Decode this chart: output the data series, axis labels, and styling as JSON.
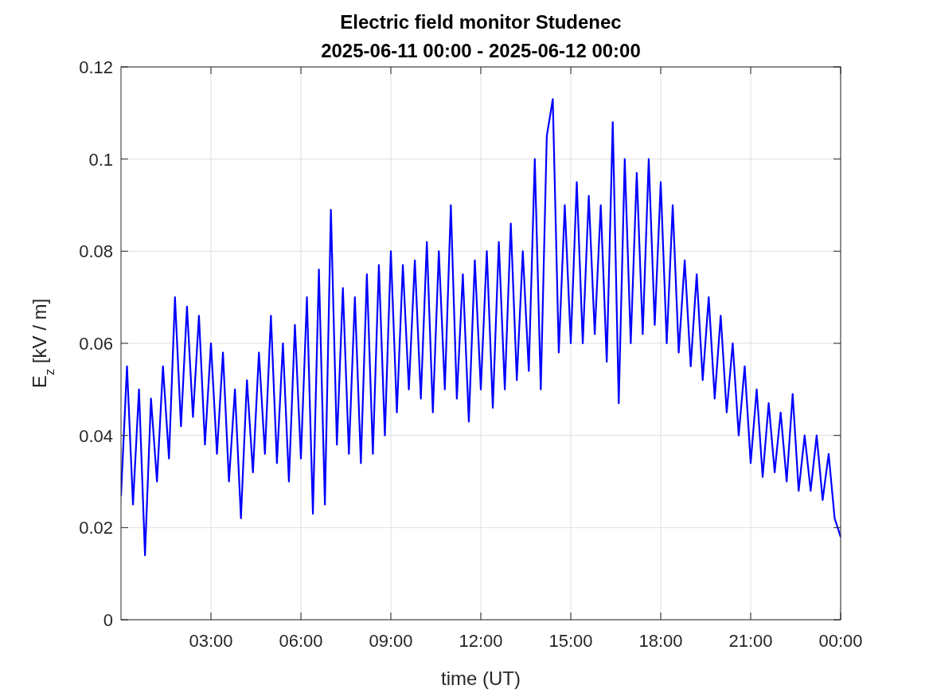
{
  "chart_data": {
    "type": "line",
    "title": "Electric field monitor Studenec",
    "subtitle": "2025-06-11 00:00 - 2025-06-12 00:00",
    "xlabel": "time (UT)",
    "ylabel": "E$_{z}$ [kV / m]",
    "xlim": [
      0,
      24
    ],
    "xticks": [
      {
        "value": 3,
        "label": "03:00"
      },
      {
        "value": 6,
        "label": "06:00"
      },
      {
        "value": 9,
        "label": "09:00"
      },
      {
        "value": 12,
        "label": "12:00"
      },
      {
        "value": 15,
        "label": "15:00"
      },
      {
        "value": 18,
        "label": "18:00"
      },
      {
        "value": 21,
        "label": "21:00"
      },
      {
        "value": 24,
        "label": "00:00"
      }
    ],
    "ylim": [
      0,
      0.12
    ],
    "yticks": [
      0,
      0.02,
      0.04,
      0.06,
      0.08,
      0.1,
      0.12
    ],
    "grid": true,
    "line_style": "solid",
    "series": [
      {
        "color": "#0000ff",
        "x": [
          0,
          0.2,
          0.4,
          0.6,
          0.8,
          1,
          1.2,
          1.4,
          1.6,
          1.8,
          2,
          2.2,
          2.4,
          2.6,
          2.8,
          3,
          3.2,
          3.4,
          3.6,
          3.8,
          4,
          4.2,
          4.4,
          4.6,
          4.8,
          5,
          5.2,
          5.4,
          5.6,
          5.8,
          6,
          6.2,
          6.4,
          6.6,
          6.8,
          7,
          7.2,
          7.4,
          7.6,
          7.8,
          8,
          8.2,
          8.4,
          8.6,
          8.8,
          9,
          9.2,
          9.4,
          9.6,
          9.8,
          10,
          10.2,
          10.4,
          10.6,
          10.8,
          11,
          11.2,
          11.4,
          11.6,
          11.8,
          12,
          12.2,
          12.4,
          12.6,
          12.8,
          13,
          13.2,
          13.4,
          13.6,
          13.8,
          14,
          14.2,
          14.4,
          14.6,
          14.8,
          15,
          15.2,
          15.4,
          15.6,
          15.8,
          16,
          16.2,
          16.4,
          16.6,
          16.8,
          17,
          17.2,
          17.4,
          17.6,
          17.8,
          18,
          18.2,
          18.4,
          18.6,
          18.8,
          19,
          19.2,
          19.4,
          19.6,
          19.8,
          20,
          20.2,
          20.4,
          20.6,
          20.8,
          21,
          21.2,
          21.4,
          21.6,
          21.8,
          22,
          22.2,
          22.4,
          22.6,
          22.8,
          23,
          23.2,
          23.4,
          23.6,
          23.8,
          24
        ],
        "values": [
          0.027,
          0.055,
          0.025,
          0.05,
          0.014,
          0.048,
          0.03,
          0.055,
          0.035,
          0.07,
          0.042,
          0.068,
          0.044,
          0.066,
          0.038,
          0.06,
          0.036,
          0.058,
          0.03,
          0.05,
          0.022,
          0.052,
          0.032,
          0.058,
          0.036,
          0.066,
          0.034,
          0.06,
          0.03,
          0.064,
          0.035,
          0.07,
          0.023,
          0.076,
          0.025,
          0.089,
          0.038,
          0.072,
          0.036,
          0.07,
          0.034,
          0.075,
          0.036,
          0.077,
          0.04,
          0.08,
          0.045,
          0.077,
          0.05,
          0.078,
          0.048,
          0.082,
          0.045,
          0.08,
          0.05,
          0.09,
          0.048,
          0.075,
          0.043,
          0.078,
          0.05,
          0.08,
          0.046,
          0.082,
          0.05,
          0.086,
          0.052,
          0.08,
          0.054,
          0.1,
          0.05,
          0.105,
          0.113,
          0.058,
          0.09,
          0.06,
          0.095,
          0.06,
          0.092,
          0.062,
          0.09,
          0.056,
          0.108,
          0.047,
          0.1,
          0.06,
          0.097,
          0.062,
          0.1,
          0.064,
          0.095,
          0.06,
          0.09,
          0.058,
          0.078,
          0.055,
          0.075,
          0.052,
          0.07,
          0.048,
          0.066,
          0.045,
          0.06,
          0.04,
          0.055,
          0.034,
          0.05,
          0.031,
          0.047,
          0.032,
          0.045,
          0.03,
          0.049,
          0.028,
          0.04,
          0.028,
          0.04,
          0.026,
          0.036,
          0.022,
          0.018
        ]
      }
    ]
  }
}
